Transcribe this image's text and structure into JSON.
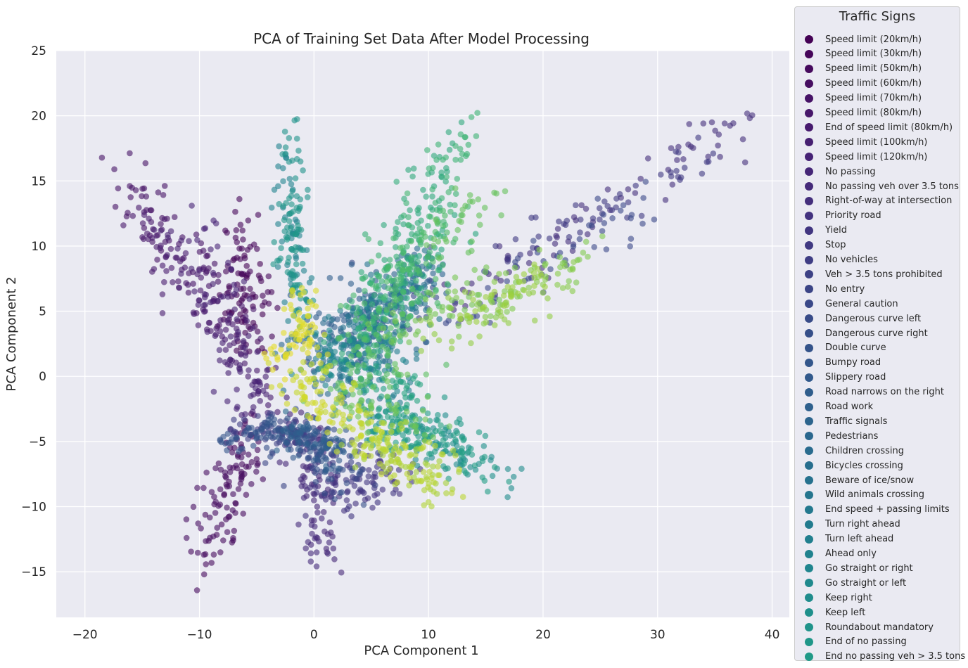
{
  "chart_data": {
    "type": "scatter",
    "title": "PCA of Training Set Data After Model Processing",
    "xlabel": "PCA Component 1",
    "ylabel": "PCA Component 2",
    "xlim": [
      -22.5,
      41.5
    ],
    "ylim": [
      -18.5,
      25
    ],
    "xticks": [
      -20,
      -10,
      0,
      10,
      20,
      30,
      40
    ],
    "yticks": [
      -15,
      -10,
      -5,
      0,
      5,
      10,
      15,
      20,
      25
    ],
    "xtick_labels": [
      "−20",
      "−10",
      "0",
      "10",
      "20",
      "30",
      "40"
    ],
    "ytick_labels": [
      "−15",
      "−10",
      "−5",
      "0",
      "5",
      "10",
      "15",
      "20",
      "25"
    ],
    "grid": true,
    "legend_title": "Traffic Signs",
    "legend_position": "outside-right",
    "series": [
      {
        "name": "Speed limit (20km/h)",
        "color": "#440154",
        "clusters": [
          {
            "x0": -6.5,
            "y0": 9,
            "x1": -6,
            "y1": 2,
            "sd": 1.2,
            "n": 40
          }
        ]
      },
      {
        "name": "Speed limit (30km/h)",
        "color": "#450559",
        "clusters": [
          {
            "x0": -7,
            "y0": 13,
            "x1": -5,
            "y1": 3,
            "sd": 1.0,
            "n": 60
          }
        ]
      },
      {
        "name": "Speed limit (50km/h)",
        "color": "#460a5d",
        "clusters": [
          {
            "x0": -9,
            "y0": -14,
            "x1": -5,
            "y1": -4,
            "sd": 1.0,
            "n": 60
          }
        ]
      },
      {
        "name": "Speed limit (60km/h)",
        "color": "#460e61",
        "clusters": [
          {
            "x0": -10,
            "y0": -13,
            "x1": -6,
            "y1": -6,
            "sd": 0.9,
            "n": 50
          }
        ]
      },
      {
        "name": "Speed limit (70km/h)",
        "color": "#461266",
        "clusters": [
          {
            "x0": -17,
            "y0": 16,
            "x1": -8,
            "y1": 6,
            "sd": 0.9,
            "n": 60
          }
        ]
      },
      {
        "name": "Speed limit (80km/h)",
        "color": "#47176a",
        "clusters": [
          {
            "x0": -16,
            "y0": 13,
            "x1": -5,
            "y1": 1,
            "sd": 0.9,
            "n": 50
          }
        ]
      },
      {
        "name": "End of speed limit (80km/h)",
        "color": "#471a6e",
        "clusters": [
          {
            "x0": -15,
            "y0": 12,
            "x1": -4,
            "y1": -2,
            "sd": 0.9,
            "n": 50
          }
        ]
      },
      {
        "name": "Speed limit (100km/h)",
        "color": "#461f71",
        "clusters": [
          {
            "x0": -13,
            "y0": 11,
            "x1": -4,
            "y1": -2,
            "sd": 0.9,
            "n": 50
          }
        ]
      },
      {
        "name": "Speed limit (120km/h)",
        "color": "#462275",
        "clusters": [
          {
            "x0": -9,
            "y0": 12,
            "x1": -6,
            "y1": -3,
            "sd": 1.0,
            "n": 50
          }
        ]
      },
      {
        "name": "No passing",
        "color": "#452677",
        "clusters": [
          {
            "x0": 2,
            "y0": -15,
            "x1": -2,
            "y1": -3,
            "sd": 0.9,
            "n": 50
          }
        ]
      },
      {
        "name": "No passing veh over 3.5 tons",
        "color": "#452a7a",
        "clusters": [
          {
            "x0": 0,
            "y0": -14,
            "x1": 0,
            "y1": -4,
            "sd": 0.9,
            "n": 40
          }
        ]
      },
      {
        "name": "Right-of-way at intersection",
        "color": "#442e7c",
        "clusters": [
          {
            "x0": 10,
            "y0": 4,
            "x1": 38,
            "y1": 20,
            "sd": 0.9,
            "n": 70
          }
        ]
      },
      {
        "name": "Priority road",
        "color": "#43327f",
        "clusters": [
          {
            "x0": 0,
            "y0": -9,
            "x1": 6,
            "y1": -8,
            "sd": 0.9,
            "n": 40
          }
        ]
      },
      {
        "name": "Yield",
        "color": "#413580",
        "clusters": [
          {
            "x0": 2,
            "y0": -9,
            "x1": 8,
            "y1": -7,
            "sd": 1.0,
            "n": 40
          }
        ]
      },
      {
        "name": "Stop",
        "color": "#403982",
        "clusters": [
          {
            "x0": 16,
            "y0": 9,
            "x1": 35,
            "y1": 17,
            "sd": 1.0,
            "n": 50
          }
        ]
      },
      {
        "name": "No vehicles",
        "color": "#3f3d84",
        "clusters": [
          {
            "x0": -7,
            "y0": -4,
            "x1": 2,
            "y1": -5,
            "sd": 0.7,
            "n": 40
          }
        ]
      },
      {
        "name": "Veh > 3.5 tons prohibited",
        "color": "#3d4185",
        "clusters": [
          {
            "x0": -5,
            "y0": -4,
            "x1": 0,
            "y1": -5,
            "sd": 0.7,
            "n": 40
          }
        ]
      },
      {
        "name": "No entry",
        "color": "#3b4486",
        "clusters": [
          {
            "x0": -2,
            "y0": -5,
            "x1": 5,
            "y1": -7,
            "sd": 0.9,
            "n": 40
          }
        ]
      },
      {
        "name": "General caution",
        "color": "#3a4888",
        "clusters": [
          {
            "x0": 12,
            "y0": 4,
            "x1": 30,
            "y1": 14,
            "sd": 1.0,
            "n": 50
          }
        ]
      },
      {
        "name": "Dangerous curve left",
        "color": "#384b88",
        "clusters": [
          {
            "x0": 0,
            "y0": 2,
            "x1": 10,
            "y1": 6,
            "sd": 1.4,
            "n": 40
          }
        ]
      },
      {
        "name": "Dangerous curve right",
        "color": "#364f89",
        "clusters": [
          {
            "x0": -3,
            "y0": -4,
            "x1": 3,
            "y1": -8,
            "sd": 1.0,
            "n": 40
          }
        ]
      },
      {
        "name": "Double curve",
        "color": "#34538a",
        "clusters": [
          {
            "x0": -8,
            "y0": -5,
            "x1": -3,
            "y1": -4,
            "sd": 0.6,
            "n": 40
          }
        ]
      },
      {
        "name": "Bumpy road",
        "color": "#33568b",
        "clusters": [
          {
            "x0": -4,
            "y0": -4,
            "x1": 2,
            "y1": -6,
            "sd": 0.6,
            "n": 40
          }
        ]
      },
      {
        "name": "Slippery road",
        "color": "#31598c",
        "clusters": [
          {
            "x0": -1,
            "y0": -5,
            "x1": 3,
            "y1": -6,
            "sd": 0.8,
            "n": 40
          }
        ]
      },
      {
        "name": "Road narrows on the right",
        "color": "#2f5d8c",
        "clusters": [
          {
            "x0": 0,
            "y0": 3,
            "x1": 6,
            "y1": 7,
            "sd": 1.4,
            "n": 40
          }
        ]
      },
      {
        "name": "Road work",
        "color": "#2e608d",
        "clusters": [
          {
            "x0": -3,
            "y0": -4,
            "x1": 2,
            "y1": -6,
            "sd": 0.7,
            "n": 40
          }
        ]
      },
      {
        "name": "Traffic signals",
        "color": "#2c648d",
        "clusters": [
          {
            "x0": 5,
            "y0": 4,
            "x1": 10,
            "y1": 8,
            "sd": 1.0,
            "n": 40
          }
        ]
      },
      {
        "name": "Pedestrians",
        "color": "#2a678e",
        "clusters": [
          {
            "x0": 1,
            "y0": 0,
            "x1": 8,
            "y1": 5,
            "sd": 1.5,
            "n": 40
          }
        ]
      },
      {
        "name": "Children crossing",
        "color": "#296b8e",
        "clusters": [
          {
            "x0": 0,
            "y0": -1,
            "x1": 6,
            "y1": 2,
            "sd": 1.5,
            "n": 40
          }
        ]
      },
      {
        "name": "Bicycles crossing",
        "color": "#276e8e",
        "clusters": [
          {
            "x0": 6,
            "y0": 5,
            "x1": 10,
            "y1": 9,
            "sd": 1.0,
            "n": 40
          }
        ]
      },
      {
        "name": "Beware of ice/snow",
        "color": "#26718e",
        "clusters": [
          {
            "x0": -2,
            "y0": 2,
            "x1": 6,
            "y1": 4,
            "sd": 1.4,
            "n": 40
          }
        ]
      },
      {
        "name": "Wild animals crossing",
        "color": "#25758e",
        "clusters": [
          {
            "x0": 7,
            "y0": 6,
            "x1": 10,
            "y1": 9,
            "sd": 0.9,
            "n": 40
          }
        ]
      },
      {
        "name": "End speed + passing limits",
        "color": "#23788e",
        "clusters": [
          {
            "x0": 2,
            "y0": 4,
            "x1": 10,
            "y1": 6,
            "sd": 1.2,
            "n": 40
          }
        ]
      },
      {
        "name": "Turn right ahead",
        "color": "#227b8e",
        "clusters": [
          {
            "x0": 1,
            "y0": 0,
            "x1": 7,
            "y1": 3,
            "sd": 1.4,
            "n": 40
          }
        ]
      },
      {
        "name": "Turn left ahead",
        "color": "#217f8e",
        "clusters": [
          {
            "x0": 0,
            "y0": 2,
            "x1": 8,
            "y1": 0,
            "sd": 1.4,
            "n": 40
          }
        ]
      },
      {
        "name": "Ahead only",
        "color": "#20828e",
        "clusters": [
          {
            "x0": -1,
            "y0": 4,
            "x1": -3,
            "y1": 18,
            "sd": 0.6,
            "n": 50
          }
        ]
      },
      {
        "name": "Go straight or right",
        "color": "#1f858e",
        "clusters": [
          {
            "x0": 2,
            "y0": 0,
            "x1": 8,
            "y1": 6,
            "sd": 1.3,
            "n": 40
          }
        ]
      },
      {
        "name": "Go straight or left",
        "color": "#1f898d",
        "clusters": [
          {
            "x0": -1,
            "y0": 2,
            "x1": 6,
            "y1": 0,
            "sd": 1.3,
            "n": 40
          }
        ]
      },
      {
        "name": "Keep right",
        "color": "#1f8c8c",
        "clusters": [
          {
            "x0": 6,
            "y0": -3,
            "x1": 18,
            "y1": -8,
            "sd": 1.0,
            "n": 50
          }
        ]
      },
      {
        "name": "Keep left",
        "color": "#1e8f8b",
        "clusters": [
          {
            "x0": 4,
            "y0": -3,
            "x1": 14,
            "y1": -6,
            "sd": 1.0,
            "n": 40
          }
        ]
      },
      {
        "name": "Roundabout mandatory",
        "color": "#1f938a",
        "clusters": [
          {
            "x0": -1,
            "y0": 4,
            "x1": -2,
            "y1": 19,
            "sd": 0.6,
            "n": 50
          }
        ]
      },
      {
        "name": "End of no passing",
        "color": "#1f9688",
        "clusters": [
          {
            "x0": -2,
            "y0": 6,
            "x1": -2,
            "y1": 14,
            "sd": 0.6,
            "n": 40
          }
        ]
      },
      {
        "name": "End no passing veh > 3.5 tons",
        "color": "#209987",
        "clusters": [
          {
            "x0": 4,
            "y0": -4,
            "x1": 12,
            "y1": -4,
            "sd": 1.0,
            "n": 40
          }
        ]
      }
    ],
    "extra_series": [
      {
        "name": "",
        "color": "#229c85",
        "clusters": [
          {
            "x0": 6,
            "y0": -3,
            "x1": 16,
            "y1": -7,
            "sd": 1.0,
            "n": 50
          }
        ]
      },
      {
        "name": "",
        "color": "#24a083",
        "clusters": [
          {
            "x0": 5,
            "y0": -3,
            "x1": 12,
            "y1": -5,
            "sd": 1.0,
            "n": 40
          }
        ]
      },
      {
        "name": "",
        "color": "#27a381",
        "clusters": [
          {
            "x0": 5,
            "y0": 0,
            "x1": 10,
            "y1": -3,
            "sd": 1.2,
            "n": 40
          }
        ]
      },
      {
        "name": "",
        "color": "#2aa67e",
        "clusters": [
          {
            "x0": 4,
            "y0": 3,
            "x1": 12,
            "y1": 12,
            "sd": 1.2,
            "n": 40
          }
        ]
      },
      {
        "name": "",
        "color": "#2ea97c",
        "clusters": [
          {
            "x0": 6,
            "y0": 8,
            "x1": 13,
            "y1": 19,
            "sd": 1.0,
            "n": 40
          }
        ]
      },
      {
        "name": "",
        "color": "#32ac79",
        "clusters": [
          {
            "x0": 4,
            "y0": 2,
            "x1": 10,
            "y1": 14,
            "sd": 1.3,
            "n": 40
          }
        ]
      },
      {
        "name": "",
        "color": "#37af76",
        "clusters": [
          {
            "x0": 4,
            "y0": 3,
            "x1": 8,
            "y1": 10,
            "sd": 1.3,
            "n": 40
          }
        ]
      },
      {
        "name": "",
        "color": "#3cb273",
        "clusters": [
          {
            "x0": 7,
            "y0": 8,
            "x1": 14,
            "y1": 20,
            "sd": 1.0,
            "n": 50
          }
        ]
      },
      {
        "name": "",
        "color": "#42b56f",
        "clusters": [
          {
            "x0": 5,
            "y0": 5,
            "x1": 12,
            "y1": 14,
            "sd": 1.3,
            "n": 40
          }
        ]
      },
      {
        "name": "",
        "color": "#48b86c",
        "clusters": [
          {
            "x0": 4,
            "y0": 3,
            "x1": 10,
            "y1": 8,
            "sd": 1.3,
            "n": 40
          }
        ]
      },
      {
        "name": "",
        "color": "#4fbb68",
        "clusters": [
          {
            "x0": 6,
            "y0": 6,
            "x1": 12,
            "y1": 12,
            "sd": 1.3,
            "n": 40
          }
        ]
      },
      {
        "name": "",
        "color": "#56bd64",
        "clusters": [
          {
            "x0": 3,
            "y0": 0,
            "x1": 8,
            "y1": 4,
            "sd": 1.4,
            "n": 40
          }
        ]
      },
      {
        "name": "",
        "color": "#5ec060",
        "clusters": [
          {
            "x0": 2,
            "y0": -1,
            "x1": 8,
            "y1": 2,
            "sd": 1.4,
            "n": 40
          }
        ]
      },
      {
        "name": "",
        "color": "#66c25c",
        "clusters": [
          {
            "x0": 10,
            "y0": 10,
            "x1": 15,
            "y1": 14,
            "sd": 1.2,
            "n": 30
          }
        ]
      },
      {
        "name": "",
        "color": "#6ec557",
        "clusters": [
          {
            "x0": 3,
            "y0": -2,
            "x1": 10,
            "y1": -4,
            "sd": 1.2,
            "n": 40
          }
        ]
      },
      {
        "name": "",
        "color": "#77c753",
        "clusters": [
          {
            "x0": 6,
            "y0": 3,
            "x1": 15,
            "y1": 7,
            "sd": 1.0,
            "n": 40
          }
        ]
      },
      {
        "name": "",
        "color": "#80c94e",
        "clusters": [
          {
            "x0": 12,
            "y0": 4,
            "x1": 25,
            "y1": 10,
            "sd": 0.8,
            "n": 40
          }
        ]
      },
      {
        "name": "",
        "color": "#89cb49",
        "clusters": [
          {
            "x0": 14,
            "y0": 5,
            "x1": 22,
            "y1": 8,
            "sd": 0.8,
            "n": 30
          }
        ]
      },
      {
        "name": "",
        "color": "#92cd44",
        "clusters": [
          {
            "x0": 10,
            "y0": 3,
            "x1": 20,
            "y1": 7,
            "sd": 0.9,
            "n": 40
          }
        ]
      },
      {
        "name": "",
        "color": "#9cd03f",
        "clusters": [
          {
            "x0": 12,
            "y0": 4,
            "x1": 20,
            "y1": 8,
            "sd": 0.8,
            "n": 30
          }
        ]
      },
      {
        "name": "",
        "color": "#a6d13a",
        "clusters": [
          {
            "x0": 2,
            "y0": -4,
            "x1": 12,
            "y1": -8,
            "sd": 1.0,
            "n": 40
          }
        ]
      },
      {
        "name": "",
        "color": "#b0d435",
        "clusters": [
          {
            "x0": 3,
            "y0": -4,
            "x1": 11,
            "y1": -9,
            "sd": 1.0,
            "n": 40
          }
        ]
      },
      {
        "name": "",
        "color": "#bbd531",
        "clusters": [
          {
            "x0": 3,
            "y0": -4,
            "x1": 12,
            "y1": -8,
            "sd": 1.0,
            "n": 60
          }
        ]
      },
      {
        "name": "",
        "color": "#c5d72d",
        "clusters": [
          {
            "x0": -2,
            "y0": 2,
            "x1": 6,
            "y1": -6,
            "sd": 1.0,
            "n": 50
          }
        ]
      },
      {
        "name": "",
        "color": "#d0d92a",
        "clusters": [
          {
            "x0": -3,
            "y0": 0,
            "x1": 3,
            "y1": -4,
            "sd": 0.9,
            "n": 40
          }
        ]
      },
      {
        "name": "",
        "color": "#dbda28",
        "clusters": [
          {
            "x0": -2,
            "y0": 6,
            "x1": 1,
            "y1": 2,
            "sd": 0.7,
            "n": 40
          }
        ]
      },
      {
        "name": "",
        "color": "#e5dc27",
        "clusters": [
          {
            "x0": -4,
            "y0": 1,
            "x1": 0,
            "y1": 4,
            "sd": 0.8,
            "n": 30
          }
        ]
      }
    ]
  }
}
